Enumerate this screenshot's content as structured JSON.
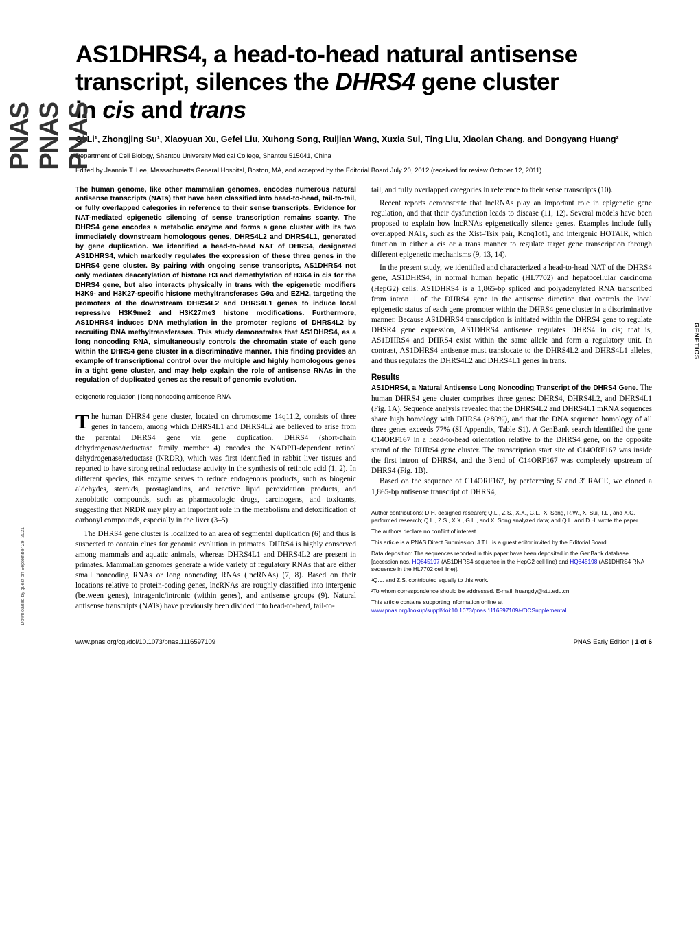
{
  "sidebar_logo": "PNAS",
  "download_note": "Downloaded by guest on September 29, 2021",
  "side_tab": "GENETICS",
  "title_line1": "AS1DHRS4, a head-to-head natural antisense",
  "title_line2_a": "transcript, silences the ",
  "title_line2_b": "DHRS4",
  "title_line2_c": " gene cluster",
  "title_line3_a": "in ",
  "title_line3_b": "cis",
  "title_line3_c": " and ",
  "title_line3_d": "trans",
  "authors": "Qi Li¹, Zhongjing Su¹, Xiaoyuan Xu, Gefei Liu, Xuhong Song, Ruijian Wang, Xuxia Sui, Ting Liu, Xiaolan Chang, and Dongyang Huang²",
  "affiliation": "Department of Cell Biology, Shantou University Medical College, Shantou 515041, China",
  "editor_note": "Edited by Jeannie T. Lee, Massachusetts General Hospital, Boston, MA, and accepted by the Editorial Board July 20, 2012 (received for review October 12, 2011)",
  "abstract": "The human genome, like other mammalian genomes, encodes numerous natural antisense transcripts (NATs) that have been classified into head-to-head, tail-to-tail, or fully overlapped categories in reference to their sense transcripts. Evidence for NAT-mediated epigenetic silencing of sense transcription remains scanty. The DHRS4 gene encodes a metabolic enzyme and forms a gene cluster with its two immediately downstream homologous genes, DHRS4L2 and DHRS4L1, generated by gene duplication. We identified a head-to-head NAT of DHRS4, designated AS1DHRS4, which markedly regulates the expression of these three genes in the DHRS4 gene cluster. By pairing with ongoing sense transcripts, AS1DHRS4 not only mediates deacetylation of histone H3 and demethylation of H3K4 in cis for the DHRS4 gene, but also interacts physically in trans with the epigenetic modifiers H3K9- and H3K27-specific histone methyltransferases G9a and EZH2, targeting the promoters of the downstream DHRS4L2 and DHRS4L1 genes to induce local repressive H3K9me2 and H3K27me3 histone modifications. Furthermore, AS1DHRS4 induces DNA methylation in the promoter regions of DHRS4L2 by recruiting DNA methyltransferases. This study demonstrates that AS1DHRS4, as a long noncoding RNA, simultaneously controls the chromatin state of each gene within the DHRS4 gene cluster in a discriminative manner. This finding provides an example of transcriptional control over the multiple and highly homologous genes in a tight gene cluster, and may help explain the role of antisense RNAs in the regulation of duplicated genes as the result of genomic evolution.",
  "keywords": "epigenetic regulation | long noncoding antisense RNA",
  "left_p1_drop": "T",
  "left_p1": "he human DHRS4 gene cluster, located on chromosome 14q11.2, consists of three genes in tandem, among which DHRS4L1 and DHRS4L2 are believed to arise from the parental DHRS4 gene via gene duplication. DHRS4 (short-chain dehydrogenase/reductase family member 4) encodes the NADPH-dependent retinol dehydrogenase/reductase (NRDR), which was first identified in rabbit liver tissues and reported to have strong retinal reductase activity in the synthesis of retinoic acid (1, 2). In different species, this enzyme serves to reduce endogenous products, such as biogenic aldehydes, steroids, prostaglandins, and reactive lipid peroxidation products, and xenobiotic compounds, such as pharmacologic drugs, carcinogens, and toxicants, suggesting that NRDR may play an important role in the metabolism and detoxification of carbonyl compounds, especially in the liver (3–5).",
  "left_p2": "The DHRS4 gene cluster is localized to an area of segmental duplication (6) and thus is suspected to contain clues for genomic evolution in primates. DHRS4 is highly conserved among mammals and aquatic animals, whereas DHRS4L1 and DHRS4L2 are present in primates. Mammalian genomes generate a wide variety of regulatory RNAs that are either small noncoding RNAs or long noncoding RNAs (lncRNAs) (7, 8). Based on their locations relative to protein-coding genes, lncRNAs are roughly classified into intergenic (between genes), intragenic/intronic (within genes), and antisense groups (9). Natural antisense transcripts (NATs) have previously been divided into head-to-head, tail-to-",
  "right_p1": "tail, and fully overlapped categories in reference to their sense transcripts (10).",
  "right_p2": "Recent reports demonstrate that lncRNAs play an important role in epigenetic gene regulation, and that their dysfunction leads to disease (11, 12). Several models have been proposed to explain how lncRNAs epigenetically silence genes. Examples include fully overlapped NATs, such as the Xist–Tsix pair, Kcnq1ot1, and intergenic HOTAIR, which function in either a cis or a trans manner to regulate target gene transcription through different epigenetic mechanisms (9, 13, 14).",
  "right_p3": "In the present study, we identified and characterized a head-to-head NAT of the DHRS4 gene, AS1DHRS4, in normal human hepatic (HL7702) and hepatocellular carcinoma (HepG2) cells. AS1DHRS4 is a 1,865-bp spliced and polyadenylated RNA transcribed from intron 1 of the DHRS4 gene in the antisense direction that controls the local epigenetic status of each gene promoter within the DHRS4 gene cluster in a discriminative manner. Because AS1DHRS4 transcription is initiated within the DHRS4 gene to regulate DHSR4 gene expression, AS1DHRS4 antisense regulates DHRS4 in cis; that is, AS1DHRS4 and DHRS4 exist within the same allele and form a regulatory unit. In contrast, AS1DHRS4 antisense must translocate to the DHRS4L2 and DHRS4L1 alleles, and thus regulates the DHRS4L2 and DHRS4L1 genes in trans.",
  "results_head": "Results",
  "subsec_head": "AS1DHRS4, a Natural Antisense Long Noncoding Transcript of the DHRS4 Gene.",
  "right_p4": " The human DHRS4 gene cluster comprises three genes: DHRS4, DHRS4L2, and DHRS4L1 (Fig. 1A). Sequence analysis revealed that the DHRS4L2 and DHRS4L1 mRNA sequences share high homology with DHRS4 (>80%), and that the DNA sequence homology of all three genes exceeds 77% (SI Appendix, Table S1). A GenBank search identified the gene C14ORF167 in a head-to-head orientation relative to the DHRS4 gene, on the opposite strand of the DHRS4 gene cluster. The transcription start site of C14ORF167 was inside the first intron of DHRS4, and the 3′end of C14ORF167 was completely upstream of DHRS4 (Fig. 1B).",
  "right_p5": "Based on the sequence of C14ORF167, by performing 5′ and 3′ RACE, we cloned a 1,865-bp antisense transcript of DHRS4,",
  "fn_authors": "Author contributions: D.H. designed research; Q.L., Z.S., X.X., G.L., X. Song, R.W., X. Sui, T.L., and X.C. performed research; Q.L., Z.S., X.X., G.L., and X. Song analyzed data; and Q.L. and D.H. wrote the paper.",
  "fn_conflict": "The authors declare no conflict of interest.",
  "fn_editor": "This article is a PNAS Direct Submission. J.T.L. is a guest editor invited by the Editorial Board.",
  "fn_data_a": "Data deposition: The sequences reported in this paper have been deposited in the GenBank database [accession nos. ",
  "fn_data_link1": "HQ845197",
  "fn_data_b": " (AS1DHRS4 sequence in the HepG2 cell line) and ",
  "fn_data_link2": "HQ845198",
  "fn_data_c": " (AS1DHRS4 RNA sequence in the HL7702 cell line)].",
  "fn_eq": "¹Q.L. and Z.S. contributed equally to this work.",
  "fn_corr": "²To whom correspondence should be addressed. E-mail: huangdy@stu.edu.cn.",
  "fn_si_a": "This article contains supporting information online at ",
  "fn_si_link": "www.pnas.org/lookup/suppl/doi:10.1073/pnas.1116597109/-/DCSupplemental",
  "fn_si_b": ".",
  "footer_left": "www.pnas.org/cgi/doi/10.1073/pnas.1116597109",
  "footer_right_a": "PNAS Early Edition | ",
  "footer_right_b": "1 of 6"
}
